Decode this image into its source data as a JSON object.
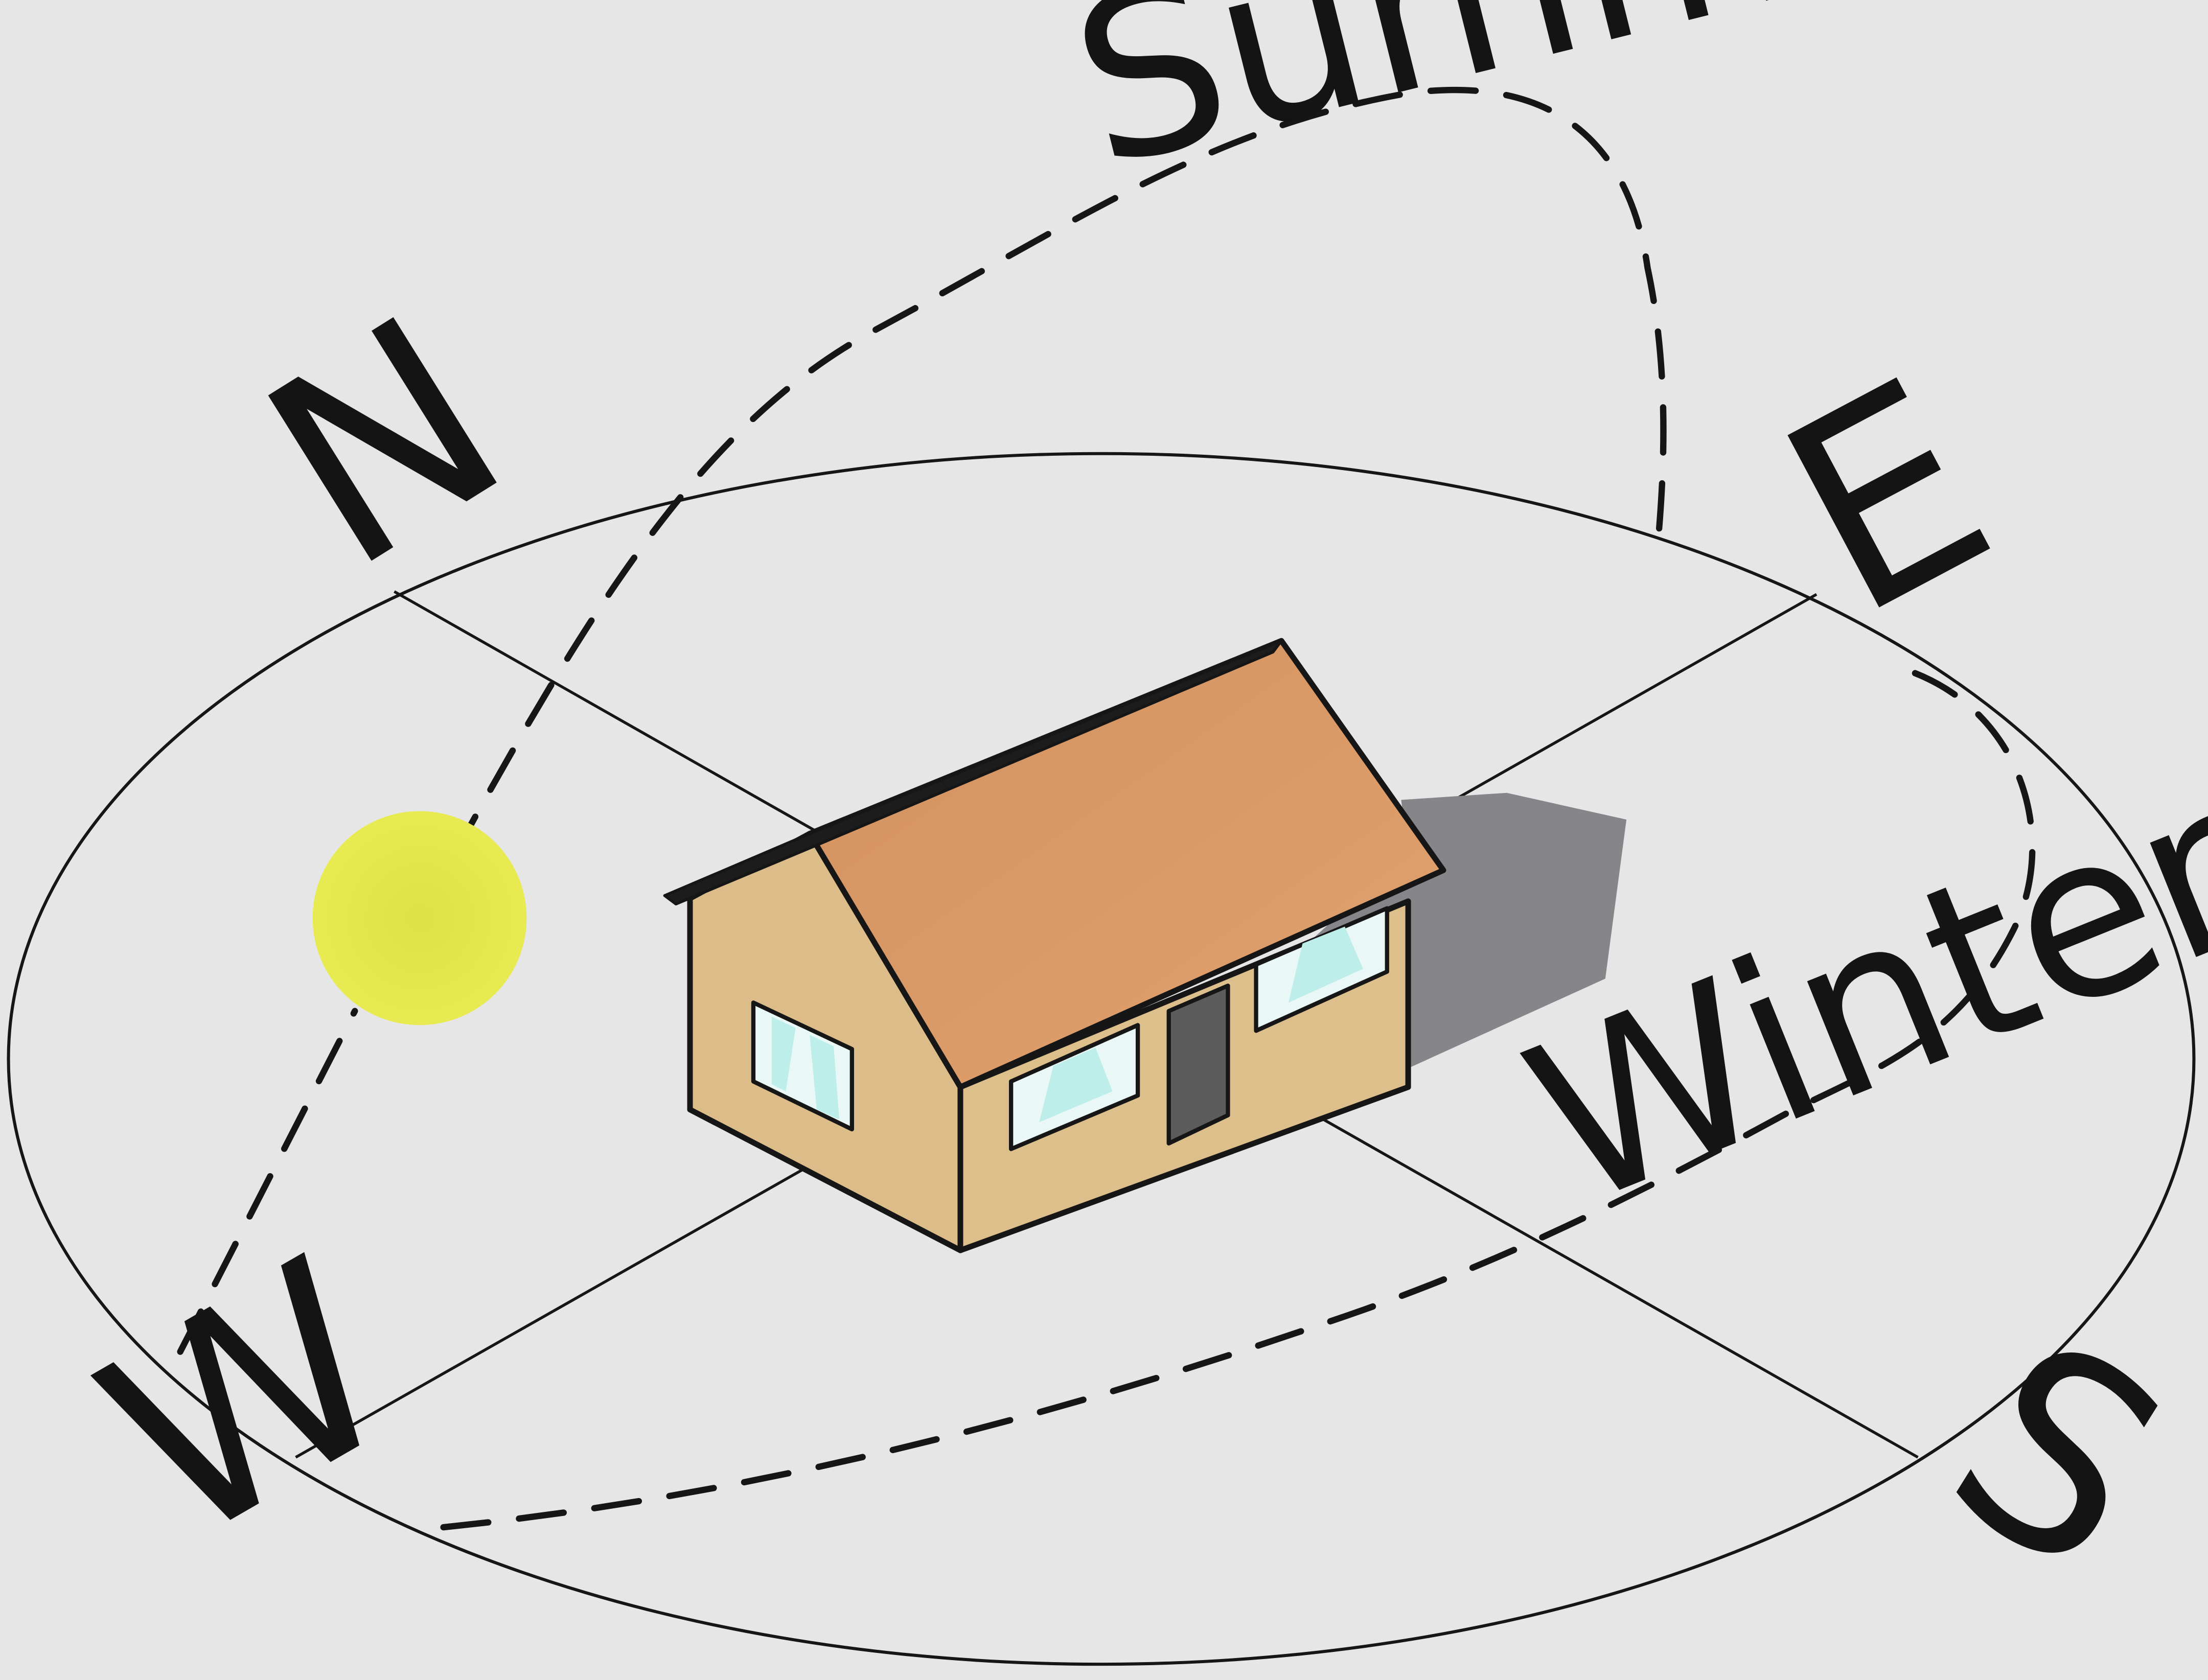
{
  "compass": {
    "north": "N",
    "east": "E",
    "south": "S",
    "west": "W"
  },
  "sun_paths": {
    "summer": "Summer",
    "winter": "Winter"
  },
  "colors": {
    "background": "#e6e6e6",
    "sun": "#e4e44a",
    "roof": "#d99665",
    "wall": "#ddbf8b",
    "shadow": "#87878a",
    "window": "#dff7f4",
    "door": "#5c5c5c",
    "stroke": "#161616"
  }
}
